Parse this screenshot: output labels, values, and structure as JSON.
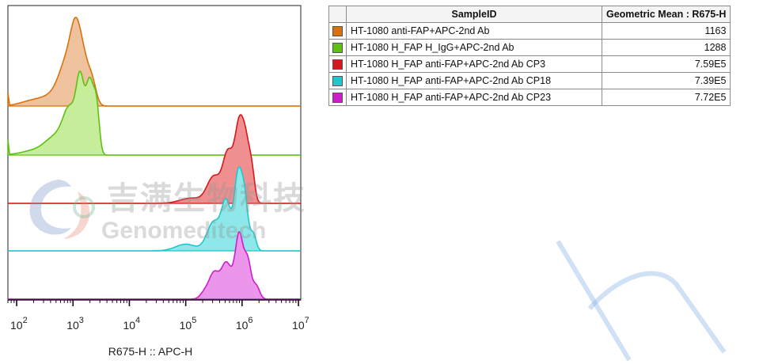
{
  "chart_data": {
    "type": "area",
    "subtype": "flow-cytometry staggered histograms",
    "xlabel": "R675-H :: APC-H",
    "xscale": "log",
    "xlim": [
      70,
      11000000
    ],
    "x_ticks": [
      {
        "base": "10",
        "exp": "2",
        "value": 100
      },
      {
        "base": "10",
        "exp": "3",
        "value": 1000
      },
      {
        "base": "10",
        "exp": "4",
        "value": 10000
      },
      {
        "base": "10",
        "exp": "5",
        "value": 100000
      },
      {
        "base": "10",
        "exp": "6",
        "value": 1000000
      },
      {
        "base": "10",
        "exp": "7",
        "value": 10000000
      }
    ],
    "grid": false,
    "legend_placement": "right (table)",
    "table_headers": {
      "swatch": "",
      "sample": "SampleID",
      "metric": "Geometric Mean : R675-H"
    },
    "series": [
      {
        "name": "HT-1080 anti-FAP+APC-2nd Ab",
        "color": "#d8720f",
        "fill": "#edc29c",
        "geomean": "1163",
        "peaks": [
          [
            2.28,
            0.22,
            0.06
          ],
          [
            2.7,
            0.22,
            0.12
          ],
          [
            2.92,
            0.15,
            0.5
          ],
          [
            3.05,
            0.09,
            0.55
          ],
          [
            3.2,
            0.1,
            0.45
          ],
          [
            3.35,
            0.07,
            0.2
          ]
        ],
        "spike": 0.15
      },
      {
        "name": "HT-1080 H_FAP H_IgG+APC-2nd Ab",
        "color": "#5fc012",
        "fill": "#c6ee9a",
        "geomean": "1288",
        "peaks": [
          [
            2.35,
            0.25,
            0.04
          ],
          [
            2.7,
            0.18,
            0.14
          ],
          [
            2.95,
            0.12,
            0.35
          ],
          [
            3.13,
            0.07,
            0.55
          ],
          [
            3.3,
            0.07,
            0.6
          ],
          [
            3.42,
            0.05,
            0.35
          ]
        ],
        "spike": 0.18
      },
      {
        "name": "HT-1080 H_FAP anti-FAP+APC-2nd Ab CP3",
        "color": "#d6181c",
        "fill": "#f08f8f",
        "geomean": "7.59E5",
        "peaks": [
          [
            5.1,
            0.2,
            0.06
          ],
          [
            5.5,
            0.12,
            0.3
          ],
          [
            5.75,
            0.09,
            0.55
          ],
          [
            5.95,
            0.08,
            0.85
          ],
          [
            6.08,
            0.07,
            0.55
          ],
          [
            6.18,
            0.05,
            0.25
          ]
        ],
        "spike": 0.0
      },
      {
        "name": "HT-1080 H_FAP anti-FAP+APC-2nd Ab CP18",
        "color": "#1ec8cc",
        "fill": "#8ee8ea",
        "geomean": "7.39E5",
        "peaks": [
          [
            5.0,
            0.18,
            0.08
          ],
          [
            5.5,
            0.12,
            0.35
          ],
          [
            5.72,
            0.08,
            0.55
          ],
          [
            5.93,
            0.07,
            0.9
          ],
          [
            6.05,
            0.06,
            0.55
          ],
          [
            6.2,
            0.05,
            0.2
          ]
        ],
        "spike": 0.0
      },
      {
        "name": "HT-1080 H_FAP anti-FAP+APC-2nd Ab CP23",
        "color": "#cc1fcc",
        "fill": "#eb95eb",
        "geomean": "7.72E5",
        "peaks": [
          [
            5.35,
            0.08,
            0.12
          ],
          [
            5.5,
            0.08,
            0.35
          ],
          [
            5.72,
            0.1,
            0.55
          ],
          [
            5.95,
            0.07,
            0.95
          ],
          [
            6.1,
            0.06,
            0.55
          ],
          [
            6.25,
            0.06,
            0.2
          ]
        ],
        "spike": 0.0
      }
    ]
  },
  "watermark": {
    "cn": "吉满生物科技",
    "en": "Genomeditech"
  }
}
